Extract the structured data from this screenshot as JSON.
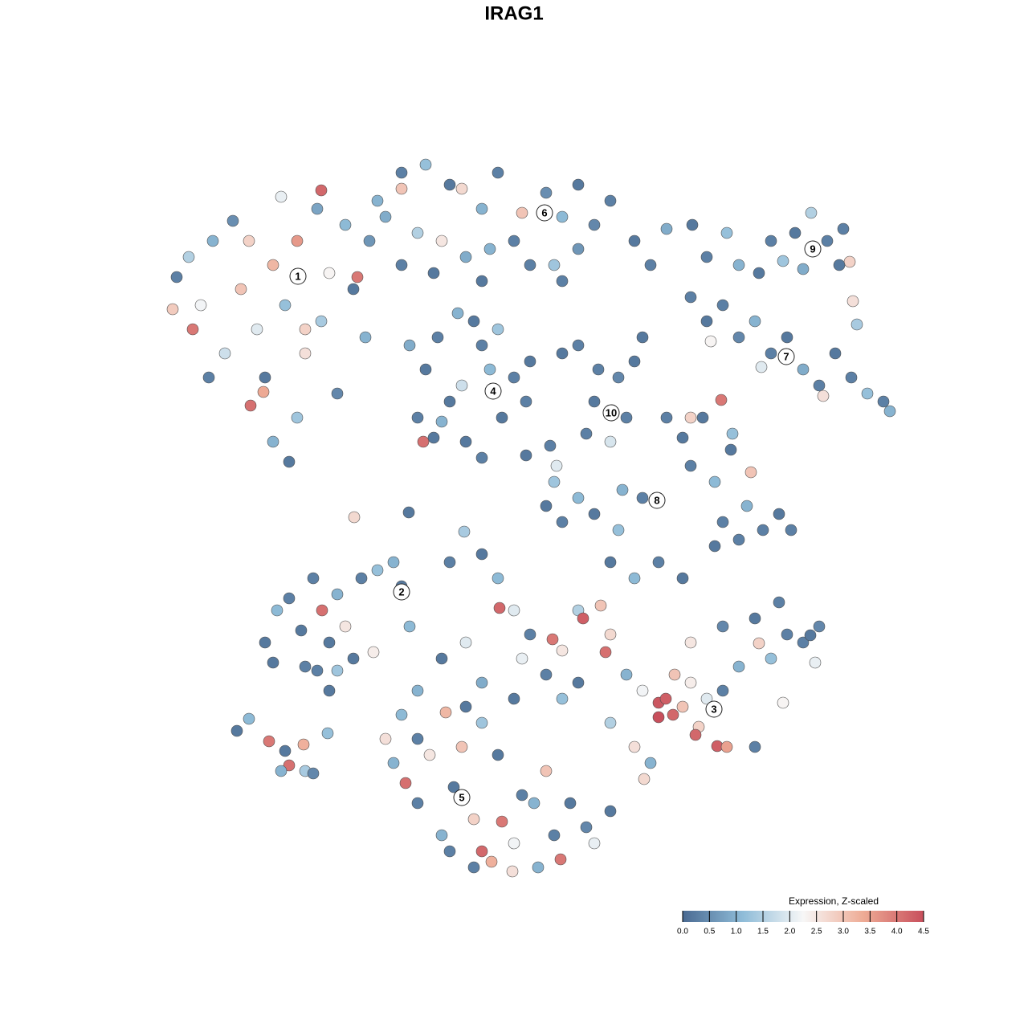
{
  "chart_data": {
    "type": "scatter",
    "title": "IRAG1",
    "xlim": [
      0,
      1280
    ],
    "ylim": [
      1280,
      0
    ],
    "x": [
      220,
      235,
      250,
      265,
      280,
      300,
      310,
      320,
      330,
      340,
      355,
      370,
      380,
      395,
      400,
      410,
      420,
      430,
      440,
      445,
      455,
      370,
      340,
      360,
      312,
      328,
      215,
      240,
      350,
      400,
      290,
      460,
      380,
      260,
      500,
      530,
      560,
      575,
      600,
      620,
      650,
      680,
      700,
      720,
      740,
      760,
      790,
      810,
      520,
      550,
      580,
      610,
      640,
      660,
      690,
      720,
      480,
      500,
      540,
      600,
      700,
      830,
      470,
      500,
      510,
      530,
      545,
      560,
      575,
      580,
      600,
      610,
      625,
      640,
      655,
      520,
      540,
      527,
      590,
      570,
      620,
      600,
      550,
      660,
      700,
      720,
      745,
      770,
      790,
      740,
      780,
      760,
      730,
      800,
      880,
      905,
      920,
      945,
      960,
      975,
      990,
      1010,
      1030,
      1050,
      1058,
      1062,
      1067,
      1045,
      1000,
      862,
      860,
      880,
      900,
      920,
      940,
      960,
      980,
      1000,
      1020,
      1040,
      1060,
      1080,
      1100,
      1025,
      1108,
      885,
      948,
      830,
      850,
      860,
      875,
      898,
      860,
      890,
      910,
      935,
      900,
      930,
      950,
      970,
      985,
      890,
      920,
      800,
      775,
      740,
      770,
      720,
      700,
      680,
      690,
      912,
      441,
      509,
      578,
      655,
      685,
      693,
      330,
      345,
      360,
      375,
      390,
      401,
      410,
      420,
      430,
      440,
      410,
      450,
      470,
      490,
      500,
      510,
      465,
      380,
      340,
      395,
      420,
      295,
      310,
      335,
      360,
      378,
      380,
      390,
      408,
      355,
      350,
      560,
      600,
      620,
      622,
      640,
      660,
      688,
      700,
      720,
      726,
      748,
      754,
      760,
      780,
      800,
      820,
      829,
      838,
      850,
      860,
      870,
      880,
      893,
      905,
      866,
      820,
      900,
      920,
      945,
      960,
      975,
      1000,
      1015,
      1020,
      980,
      940,
      900,
      860,
      840,
      810,
      790,
      760,
      720,
      700,
      680,
      650,
      640,
      600,
      580,
      550,
      520,
      760,
      790,
      820,
      850,
      940,
      1009,
      802,
      970,
      480,
      490,
      505,
      520,
      535,
      550,
      565,
      575,
      590,
      600,
      612,
      625,
      640,
      650,
      665,
      680,
      690,
      698,
      710,
      730,
      740,
      760,
      555,
      520,
      500,
      600,
      620,
      560,
      638,
      670,
      590,
      580
    ],
    "y": [
      345,
      320,
      380,
      300,
      440,
      360,
      300,
      410,
      470,
      330,
      380,
      300,
      440,
      260,
      400,
      340,
      490,
      280,
      360,
      345,
      420,
      520,
      550,
      575,
      505,
      488,
      385,
      410,
      245,
      237,
      275,
      300,
      410,
      470,
      215,
      205,
      230,
      235,
      260,
      215,
      265,
      240,
      270,
      230,
      280,
      250,
      300,
      330,
      290,
      300,
      320,
      310,
      300,
      330,
      330,
      310,
      270,
      330,
      340,
      350,
      350,
      285,
      250,
      235,
      430,
      460,
      420,
      500,
      480,
      550,
      430,
      460,
      520,
      470,
      500,
      520,
      545,
      550,
      400,
      390,
      410,
      570,
      525,
      450,
      440,
      430,
      460,
      470,
      450,
      500,
      520,
      550,
      540,
      420,
      320,
      290,
      330,
      340,
      300,
      325,
      290,
      265,
      300,
      285,
      326,
      375,
      404,
      330,
      335,
      280,
      370,
      400,
      380,
      420,
      400,
      440,
      420,
      460,
      480,
      440,
      470,
      490,
      500,
      493,
      512,
      425,
      457,
      520,
      545,
      580,
      520,
      498,
      520,
      600,
      560,
      588,
      650,
      630,
      660,
      640,
      660,
      680,
      672,
      620,
      610,
      640,
      660,
      620,
      650,
      630,
      600,
      540,
      644,
      638,
      662,
      567,
      555,
      580,
      800,
      760,
      745,
      785,
      720,
      760,
      800,
      740,
      780,
      820,
      860,
      720,
      710,
      700,
      730,
      780,
      812,
      830,
      825,
      835,
      835,
      910,
      895,
      923,
      953,
      927,
      960,
      963,
      913,
      935,
      960,
      700,
      690,
      720,
      757,
      760,
      790,
      796,
      810,
      760,
      770,
      754,
      812,
      790,
      840,
      860,
      875,
      870,
      890,
      880,
      850,
      905,
      870,
      929,
      930,
      915,
      893,
      860,
      830,
      801,
      820,
      875,
      800,
      825,
      780,
      790,
      770,
      780,
      800,
      840,
      950,
      930,
      900,
      850,
      870,
      840,
      820,
      870,
      850,
      800,
      820,
      860,
      700,
      720,
      700,
      720,
      930,
      791,
      970,
      750,
      920,
      950,
      975,
      1000,
      940,
      1040,
      980,
      930,
      1020,
      1060,
      1073,
      1023,
      1050,
      990,
      1000,
      960,
      1040,
      1070,
      1000,
      1030,
      1050,
      1010,
      887,
      920,
      890,
      900,
      940,
      1060,
      1085,
      1080,
      1080,
      880
    ],
    "values": [
      0.3,
      1.5,
      2.2,
      1.0,
      1.8,
      3.0,
      2.8,
      2.0,
      0.2,
      3.2,
      1.2,
      3.6,
      2.6,
      0.8,
      1.4,
      2.3,
      0.4,
      1.1,
      0.2,
      4.0,
      1.0,
      1.3,
      1.0,
      0.2,
      4.1,
      3.4,
      2.9,
      4.0,
      2.1,
      4.2,
      0.5,
      0.6,
      2.8,
      0.3,
      0.3,
      1.2,
      0.2,
      2.7,
      1.0,
      0.3,
      3.0,
      0.5,
      1.1,
      0.2,
      0.4,
      0.3,
      0.2,
      0.3,
      1.5,
      2.5,
      0.9,
      1.0,
      0.3,
      0.3,
      1.3,
      0.6,
      0.9,
      0.3,
      0.2,
      0.2,
      0.3,
      0.9,
      1.0,
      3.0,
      0.9,
      0.2,
      0.3,
      0.2,
      1.8,
      0.2,
      0.3,
      1.1,
      0.2,
      0.3,
      0.3,
      0.3,
      0.2,
      4.1,
      0.2,
      1.0,
      1.3,
      0.3,
      1.0,
      0.2,
      0.2,
      0.3,
      0.3,
      0.4,
      0.2,
      0.2,
      0.3,
      1.9,
      0.3,
      0.2,
      0.3,
      1.2,
      1.0,
      0.2,
      0.3,
      1.3,
      0.2,
      1.5,
      0.3,
      0.3,
      2.8,
      2.6,
      1.4,
      0.2,
      0.9,
      0.2,
      0.3,
      0.2,
      0.3,
      0.4,
      1.0,
      0.3,
      0.2,
      0.9,
      0.3,
      0.2,
      0.3,
      1.2,
      0.3,
      2.6,
      1.0,
      2.3,
      2.0,
      0.3,
      0.2,
      0.3,
      0.2,
      4.0,
      2.8,
      1.1,
      0.2,
      3.0,
      0.3,
      1.0,
      0.3,
      0.2,
      0.3,
      0.2,
      0.3,
      0.3,
      1.0,
      0.2,
      1.2,
      1.1,
      0.3,
      0.2,
      1.3,
      1.2,
      2.7,
      0.2,
      1.4,
      0.2,
      0.3,
      2.0,
      0.2,
      1.1,
      0.3,
      0.2,
      0.3,
      4.1,
      0.2,
      1.0,
      2.5,
      0.2,
      0.2,
      0.3,
      1.2,
      1.0,
      0.2,
      1.1,
      2.4,
      0.3,
      0.2,
      0.3,
      1.3,
      0.2,
      1.1,
      4.0,
      4.1,
      3.3,
      1.4,
      0.4,
      1.2,
      0.2,
      1.0,
      0.3,
      0.2,
      1.1,
      4.2,
      2.0,
      0.3,
      4.0,
      2.5,
      1.5,
      4.3,
      3.0,
      4.1,
      2.7,
      1.0,
      2.2,
      4.4,
      4.3,
      4.2,
      3.0,
      2.4,
      2.8,
      2.0,
      4.3,
      3.5,
      4.2,
      4.5,
      0.3,
      1.0,
      2.8,
      1.2,
      2.3,
      0.3,
      2.1,
      0.4,
      0.3,
      0.2,
      0.4,
      2.5,
      3.0,
      1.0,
      2.6,
      1.5,
      0.2,
      1.2,
      0.3,
      2.1,
      0.2,
      0.9,
      2.0,
      0.2,
      1.0,
      0.2,
      1.1,
      0.3,
      0.2,
      0.3,
      0.2,
      2.7,
      0.3,
      2.6,
      1.0,
      4.1,
      0.3,
      2.5,
      1.0,
      0.2,
      3.0,
      2.8,
      4.2,
      3.3,
      4.0,
      2.2,
      0.3,
      1.0,
      3.0,
      0.3,
      4.0,
      0.2,
      0.4,
      2.1,
      0.2,
      3.2,
      0.3,
      1.1,
      1.3,
      0.2,
      0.3,
      2.6,
      1.0,
      0.3,
      0.2
    ],
    "annotations": [
      {
        "text": "1",
        "x": 371,
        "y": 344
      },
      {
        "text": "6",
        "x": 678,
        "y": 265
      },
      {
        "text": "9",
        "x": 1012,
        "y": 310
      },
      {
        "text": "7",
        "x": 979,
        "y": 444
      },
      {
        "text": "4",
        "x": 614,
        "y": 487
      },
      {
        "text": "10",
        "x": 761,
        "y": 514
      },
      {
        "text": "8",
        "x": 818,
        "y": 623
      },
      {
        "text": "2",
        "x": 500,
        "y": 737
      },
      {
        "text": "3",
        "x": 889,
        "y": 883
      },
      {
        "text": "5",
        "x": 575,
        "y": 993
      }
    ],
    "colorbar": {
      "title": "Expression, Z-scaled",
      "lim": [
        0,
        4.5
      ],
      "ticks": [
        {
          "value": 0,
          "label": "0.0"
        },
        0.5,
        {
          "value": 1,
          "label": "1.0"
        },
        1.5,
        {
          "value": 2,
          "label": "2.0"
        },
        2.5,
        {
          "value": 3,
          "label": "3.0"
        },
        3.5,
        {
          "value": 4,
          "label": "4.0"
        },
        4.5
      ],
      "colors": [
        "#4a6a92",
        "#8fbcd8",
        "#f7f7f7",
        "#eeab95",
        "#c84f5c"
      ]
    }
  }
}
